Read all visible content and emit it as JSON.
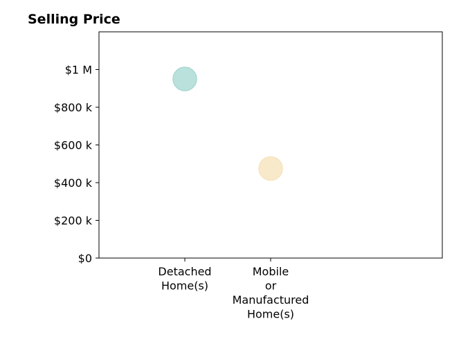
{
  "chart_data": {
    "type": "scatter",
    "title": "Selling Price",
    "xlabel": "",
    "ylabel": "",
    "categories": [
      [
        "Detached",
        "Home(s)"
      ],
      [
        "Mobile",
        "or",
        "Manufactured",
        "Home(s)"
      ]
    ],
    "points": [
      {
        "category_index": 0,
        "y": 950000,
        "color": "#a8d8d2"
      },
      {
        "category_index": 1,
        "y": 475000,
        "color": "#f7e3bc"
      }
    ],
    "y_ticks": [
      0,
      200000,
      400000,
      600000,
      800000,
      1000000
    ],
    "y_tick_labels": [
      "$0",
      "$200 k",
      "$400 k",
      "$600 k",
      "$800 k",
      "$1 M"
    ],
    "ylim": [
      0,
      1200000
    ],
    "grid": false,
    "legend": "none"
  }
}
